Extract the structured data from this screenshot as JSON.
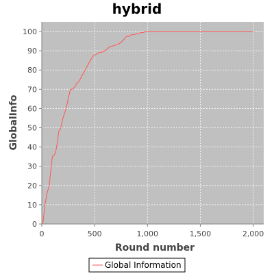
{
  "chart_data": {
    "type": "line",
    "title": "hybrid",
    "xlabel": "Round number",
    "ylabel": "GlobalInfo",
    "xlim": [
      0,
      2100
    ],
    "ylim": [
      0,
      105
    ],
    "x_ticks": [
      0,
      500,
      1000,
      1500,
      2000
    ],
    "x_tick_labels": [
      "0",
      "500",
      "1,000",
      "1,500",
      "2,000"
    ],
    "y_ticks": [
      0,
      10,
      20,
      30,
      40,
      50,
      60,
      70,
      80,
      90,
      100
    ],
    "y_tick_labels": [
      "0",
      "10",
      "20",
      "30",
      "40",
      "50",
      "60",
      "70",
      "80",
      "90",
      "100"
    ],
    "grid": true,
    "legend_position": "bottom-center",
    "colors": {
      "plot_background": "#c0c0c0",
      "series": "#ff5555",
      "grid": "#ffffff"
    },
    "series": [
      {
        "name": "Global Information",
        "x": [
          10,
          20,
          30,
          50,
          60,
          70,
          80,
          100,
          120,
          130,
          150,
          160,
          180,
          200,
          230,
          250,
          270,
          290,
          310,
          330,
          350,
          370,
          390,
          410,
          430,
          450,
          470,
          490,
          510,
          540,
          580,
          610,
          640,
          670,
          700,
          740,
          760,
          780,
          800,
          820,
          840,
          860,
          880,
          920,
          940,
          960,
          980,
          1000,
          1050,
          1100,
          1200,
          1500,
          1800,
          2000
        ],
        "y": [
          0,
          5,
          10,
          16,
          18,
          20,
          25,
          35,
          36,
          37,
          43,
          48,
          50,
          55,
          60,
          65,
          70,
          70,
          71,
          73,
          74,
          76,
          78,
          80,
          82,
          84,
          86,
          87.5,
          88,
          89,
          89.5,
          90.5,
          92,
          92.5,
          93,
          94,
          95,
          96,
          97.5,
          97.5,
          98,
          98.5,
          98.5,
          99,
          99.5,
          99.5,
          100,
          100,
          100,
          100,
          100,
          100,
          100,
          100
        ]
      }
    ]
  }
}
